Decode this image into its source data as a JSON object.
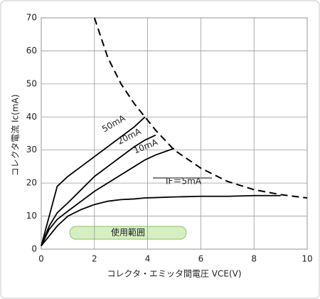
{
  "chart_data": {
    "type": "line",
    "x_label": "コレクタ・エミッタ間電圧 VCE(V)",
    "y_label": "コレクタ電流 Ic(mA)",
    "x": [
      0,
      0.3,
      0.6,
      1,
      1.5,
      2,
      2.5,
      3,
      3.5,
      3.9,
      4.3,
      5,
      6,
      7,
      8,
      9,
      10
    ],
    "series": [
      {
        "name": "50mA",
        "color": "#000000",
        "values": [
          1,
          10,
          19,
          22,
          25,
          28,
          31,
          34,
          37,
          40,
          null,
          null,
          null,
          null,
          null,
          null,
          null
        ]
      },
      {
        "name": "20mA",
        "color": "#000000",
        "values": [
          1,
          7,
          11,
          14,
          18,
          22,
          25,
          28,
          31,
          33,
          34.5,
          null,
          null,
          null,
          null,
          null,
          null
        ]
      },
      {
        "name": "10mA",
        "color": "#000000",
        "values": [
          1,
          6,
          9,
          11.5,
          14.5,
          17.5,
          20,
          22.5,
          25,
          27,
          28.5,
          30.5,
          null,
          null,
          null,
          null,
          null
        ]
      },
      {
        "name": "IF＝5mA",
        "color": "#000000",
        "values": [
          1,
          4,
          7,
          10,
          12,
          13.5,
          14.5,
          15,
          15.2,
          15.5,
          15.6,
          15.8,
          16,
          16,
          16.2,
          16.2,
          null
        ]
      },
      {
        "color": "#000000",
        "dashed": true,
        "values": [
          null,
          null,
          null,
          null,
          null,
          70,
          58,
          50,
          44,
          40,
          36,
          30,
          24.5,
          20.5,
          18,
          16.5,
          15.5
        ]
      }
    ],
    "annotations": [
      "使用範囲"
    ],
    "xlim": [
      0,
      10
    ],
    "xticks": [
      0,
      2,
      4,
      6,
      8,
      10
    ],
    "ylim": [
      0,
      70
    ],
    "yticks": [
      0,
      10,
      20,
      30,
      40,
      50,
      60,
      70
    ],
    "grid": true
  }
}
